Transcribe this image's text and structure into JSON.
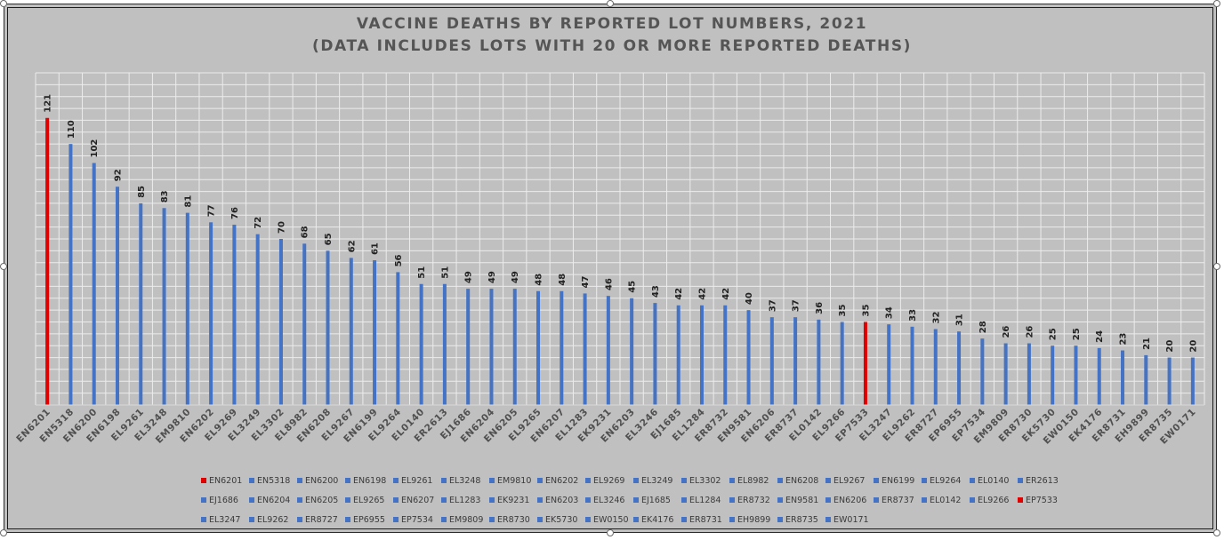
{
  "chart_data": {
    "type": "bar",
    "title": "VACCINE DEATHS BY REPORTED LOT NUMBERS, 2021",
    "subtitle": "(DATA INCLUDES LOTS WITH 20 OR MORE REPORTED DEATHS)",
    "xlabel": "",
    "ylabel": "",
    "ylim": [
      0,
      140
    ],
    "grid": true,
    "legend_position": "bottom",
    "categories": [
      "EN6201",
      "EN5318",
      "EN6200",
      "EN6198",
      "EL9261",
      "EL3248",
      "EM9810",
      "EN6202",
      "EL9269",
      "EL3249",
      "EL3302",
      "EL8982",
      "EN6208",
      "EL9267",
      "EN6199",
      "EL9264",
      "EL0140",
      "ER2613",
      "EJ1686",
      "EN6204",
      "EN6205",
      "EL9265",
      "EN6207",
      "EL1283",
      "EK9231",
      "EN6203",
      "EL3246",
      "EJ1685",
      "EL1284",
      "ER8732",
      "EN9581",
      "EN6206",
      "ER8737",
      "EL0142",
      "EL9266",
      "EP7533",
      "EL3247",
      "EL9262",
      "ER8727",
      "EP6955",
      "EP7534",
      "EM9809",
      "ER8730",
      "EK5730",
      "EW0150",
      "EK4176",
      "ER8731",
      "EH9899",
      "ER8735",
      "EW0171"
    ],
    "values": [
      121,
      110,
      102,
      92,
      85,
      83,
      81,
      77,
      76,
      72,
      70,
      68,
      65,
      62,
      61,
      56,
      51,
      51,
      49,
      49,
      49,
      48,
      48,
      47,
      46,
      45,
      43,
      42,
      42,
      42,
      40,
      37,
      37,
      36,
      35,
      35,
      34,
      33,
      32,
      31,
      28,
      26,
      26,
      25,
      25,
      24,
      23,
      21,
      20,
      20
    ],
    "highlighted": [
      "EN6201",
      "EP7533"
    ],
    "colors": {
      "default": "#4472c4",
      "highlight": "#e00000"
    }
  }
}
